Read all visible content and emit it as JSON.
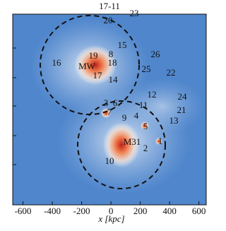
{
  "chart_data": {
    "type": "image",
    "xlabel": "x [kpc]",
    "xlim": [
      -670,
      650
    ],
    "xticks": [
      -600,
      -400,
      -200,
      0,
      200,
      400,
      600
    ],
    "labels": [
      "17-11",
      "23",
      "20",
      "15",
      "26",
      "16",
      "19",
      "8",
      "MW",
      "18",
      "25",
      "22",
      "17",
      "14",
      "12",
      "24",
      "3",
      "6",
      "11",
      "21",
      "7",
      "9",
      "4",
      "13",
      "5",
      "1",
      "M31",
      "2",
      "10"
    ]
  }
}
